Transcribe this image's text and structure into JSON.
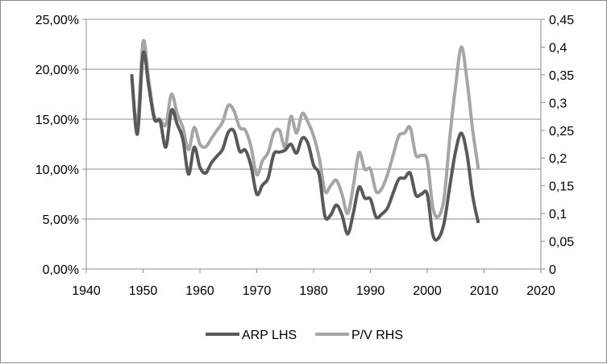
{
  "chart_data": {
    "type": "line",
    "title": "",
    "xlabel": "",
    "ylabel": "",
    "xlim": [
      1940,
      2020
    ],
    "ylim_left": [
      0,
      0.25
    ],
    "ylim_right": [
      0,
      0.45
    ],
    "grid": true,
    "legend_position": "bottom",
    "x_ticks": [
      "1940",
      "1950",
      "1960",
      "1970",
      "1980",
      "1990",
      "2000",
      "2010",
      "2020"
    ],
    "y_left_ticks": [
      "0,00%",
      "5,00%",
      "10,00%",
      "15,00%",
      "20,00%",
      "25,00%"
    ],
    "y_right_ticks": [
      "0",
      "0,05",
      "0,1",
      "0,15",
      "0,2",
      "0,25",
      "0,3",
      "0,35",
      "0,4",
      "0,45"
    ],
    "series": [
      {
        "name": "ARP LHS",
        "axis": "left",
        "color": "#595959",
        "x": [
          1948,
          1949,
          1950,
          1951,
          1952,
          1953,
          1954,
          1955,
          1956,
          1957,
          1958,
          1959,
          1960,
          1961,
          1962,
          1963,
          1964,
          1965,
          1966,
          1967,
          1968,
          1969,
          1970,
          1971,
          1972,
          1973,
          1974,
          1975,
          1976,
          1977,
          1978,
          1979,
          1980,
          1981,
          1982,
          1983,
          1984,
          1985,
          1986,
          1987,
          1988,
          1989,
          1990,
          1991,
          1992,
          1993,
          1994,
          1995,
          1996,
          1997,
          1998,
          1999,
          2000,
          2001,
          2002,
          2003,
          2004,
          2005,
          2006,
          2007,
          2008,
          2009
        ],
        "values": [
          0.195,
          0.135,
          0.216,
          0.183,
          0.15,
          0.148,
          0.122,
          0.159,
          0.145,
          0.13,
          0.095,
          0.122,
          0.102,
          0.096,
          0.106,
          0.113,
          0.12,
          0.137,
          0.138,
          0.118,
          0.119,
          0.103,
          0.075,
          0.084,
          0.091,
          0.115,
          0.117,
          0.119,
          0.125,
          0.116,
          0.131,
          0.126,
          0.104,
          0.094,
          0.053,
          0.054,
          0.064,
          0.054,
          0.035,
          0.056,
          0.082,
          0.071,
          0.07,
          0.052,
          0.055,
          0.061,
          0.076,
          0.09,
          0.091,
          0.096,
          0.074,
          0.075,
          0.075,
          0.034,
          0.031,
          0.047,
          0.084,
          0.118,
          0.136,
          0.115,
          0.073,
          0.046
        ]
      },
      {
        "name": "P/V RHS",
        "axis": "right",
        "color": "#a6a6a6",
        "x": [
          1948,
          1949,
          1950,
          1951,
          1952,
          1953,
          1954,
          1955,
          1956,
          1957,
          1958,
          1959,
          1960,
          1961,
          1962,
          1963,
          1964,
          1965,
          1966,
          1967,
          1968,
          1969,
          1970,
          1971,
          1972,
          1973,
          1974,
          1975,
          1976,
          1977,
          1978,
          1979,
          1980,
          1981,
          1982,
          1983,
          1984,
          1985,
          1986,
          1987,
          1988,
          1989,
          1990,
          1991,
          1992,
          1993,
          1994,
          1995,
          1996,
          1997,
          1998,
          1999,
          2000,
          2001,
          2002,
          2003,
          2004,
          2005,
          2006,
          2007,
          2008,
          2009
        ],
        "values": [
          0.345,
          0.26,
          0.41,
          0.34,
          0.275,
          0.27,
          0.26,
          0.315,
          0.28,
          0.255,
          0.215,
          0.255,
          0.225,
          0.22,
          0.235,
          0.25,
          0.265,
          0.295,
          0.285,
          0.255,
          0.25,
          0.22,
          0.17,
          0.195,
          0.21,
          0.245,
          0.25,
          0.22,
          0.275,
          0.245,
          0.28,
          0.265,
          0.24,
          0.2,
          0.14,
          0.15,
          0.16,
          0.135,
          0.1,
          0.15,
          0.21,
          0.18,
          0.18,
          0.14,
          0.145,
          0.17,
          0.205,
          0.24,
          0.245,
          0.255,
          0.205,
          0.205,
          0.195,
          0.11,
          0.095,
          0.13,
          0.24,
          0.33,
          0.4,
          0.34,
          0.25,
          0.18
        ]
      }
    ]
  }
}
